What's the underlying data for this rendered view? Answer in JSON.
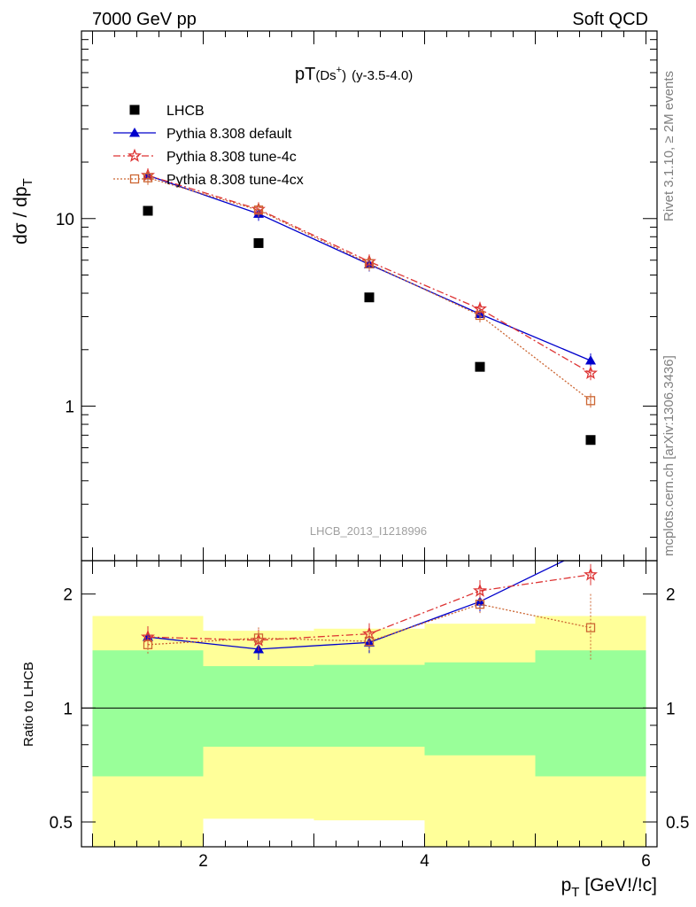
{
  "header": {
    "left": "7000 GeV pp",
    "right": "Soft QCD"
  },
  "side_text": {
    "upper": "Rivet 3.1.10, ≥ 2M events",
    "lower": "mcplots.cern.ch [arXiv:1306.3436]"
  },
  "chart_data": [
    {
      "type": "line",
      "panel": "main",
      "title": {
        "main": "pT",
        "sub": "(Ds",
        "sup": "+",
        "tail": ")",
        "range": "(y-3.5-4.0)"
      },
      "ylabel": {
        "main": "dσ / dp",
        "sub": "T"
      },
      "xlim": [
        0.9,
        6.1
      ],
      "ylim": [
        0.15,
        100
      ],
      "yscale": "log",
      "y_tick_labels": [
        {
          "value": 1,
          "label": "1"
        },
        {
          "value": 10,
          "label": "10"
        }
      ],
      "watermark": "LHCB_2013_I1218996",
      "legend_position": "top-left",
      "x": [
        1.5,
        2.5,
        3.5,
        4.5,
        5.5
      ],
      "series": [
        {
          "name": "LHCB",
          "style": "data-square",
          "color": "#000000",
          "values": [
            11.0,
            7.4,
            3.8,
            1.62,
            0.66
          ]
        },
        {
          "name": "Pythia 8.308 default",
          "style": "solid-triangle",
          "color": "#0000cc",
          "values": [
            17.0,
            10.6,
            5.7,
            3.1,
            1.75
          ]
        },
        {
          "name": "Pythia 8.308 tune-4c",
          "style": "dashdot-star",
          "color": "#dd3333",
          "values": [
            17.0,
            11.2,
            5.9,
            3.3,
            1.5
          ]
        },
        {
          "name": "Pythia 8.308 tune-4cx",
          "style": "dotted-open-square",
          "color": "#cc6633",
          "values": [
            16.5,
            11.1,
            5.75,
            3.05,
            1.07
          ]
        }
      ]
    },
    {
      "type": "line",
      "panel": "ratio",
      "ylabel": "Ratio to LHCB",
      "xlabel": {
        "main": "p",
        "sub": "T",
        "tail": " [GeV!/!c]"
      },
      "xlim": [
        0.9,
        6.1
      ],
      "ylim": [
        0.43,
        2.45
      ],
      "yscale": "log",
      "x_ticks": [
        2,
        4,
        6
      ],
      "y_ticks": [
        0.5,
        1,
        2
      ],
      "bins": [
        {
          "lo": 1,
          "hi": 2,
          "green": [
            0.66,
            1.42
          ],
          "yellow": [
            0.4,
            1.75
          ]
        },
        {
          "lo": 2,
          "hi": 3,
          "green": [
            0.79,
            1.29
          ],
          "yellow": [
            0.51,
            1.6
          ]
        },
        {
          "lo": 3,
          "hi": 4,
          "green": [
            0.79,
            1.3
          ],
          "yellow": [
            0.505,
            1.62
          ]
        },
        {
          "lo": 4,
          "hi": 5,
          "green": [
            0.75,
            1.32
          ],
          "yellow": [
            0.4,
            1.67
          ]
        },
        {
          "lo": 5,
          "hi": 6,
          "green": [
            0.66,
            1.42
          ],
          "yellow": [
            0.4,
            1.75
          ]
        }
      ],
      "x": [
        1.5,
        2.5,
        3.5,
        4.5,
        5.5
      ],
      "series": [
        {
          "name": "Pythia 8.308 default",
          "color": "#0000cc",
          "values": [
            1.54,
            1.43,
            1.49,
            1.91,
            2.65
          ]
        },
        {
          "name": "Pythia 8.308 tune-4c",
          "color": "#dd3333",
          "values": [
            1.54,
            1.51,
            1.57,
            2.04,
            2.25
          ]
        },
        {
          "name": "Pythia 8.308 tune-4cx",
          "color": "#cc6633",
          "values": [
            1.47,
            1.53,
            1.5,
            1.88,
            1.63
          ]
        }
      ]
    }
  ]
}
